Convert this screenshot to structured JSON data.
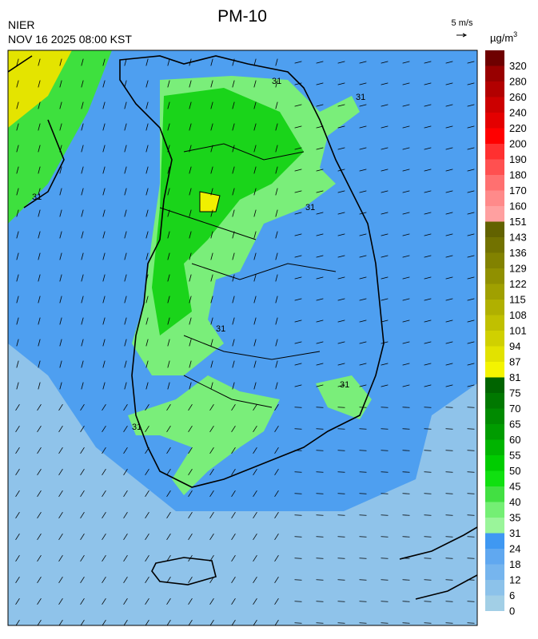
{
  "header": {
    "title": "PM-10",
    "agency": "NIER",
    "time": "NOV 16 2025 08:00 KST"
  },
  "wind_scale": {
    "label": "5 m/s"
  },
  "colorbar": {
    "unit": {
      "base": "µg/m",
      "sup": "3"
    },
    "levels": [
      0,
      6,
      12,
      18,
      24,
      31,
      35,
      40,
      45,
      50,
      55,
      60,
      65,
      70,
      75,
      81,
      87,
      94,
      101,
      108,
      115,
      122,
      129,
      136,
      143,
      151,
      160,
      170,
      180,
      190,
      200,
      220,
      240,
      260,
      280,
      320
    ],
    "colors": [
      "#a2cfe6",
      "#8cc2ea",
      "#76b5ee",
      "#60a8f0",
      "#3f98f2",
      "#9af59a",
      "#74ef74",
      "#42e042",
      "#10e010",
      "#00cc00",
      "#00b400",
      "#009c00",
      "#008a00",
      "#007800",
      "#006400",
      "#f4f400",
      "#e2e200",
      "#d0d000",
      "#c0c000",
      "#b0b000",
      "#a0a000",
      "#909000",
      "#828200",
      "#727200",
      "#626200",
      "#ffa0a0",
      "#ff8a8a",
      "#ff7070",
      "#ff5050",
      "#ff3030",
      "#ff0000",
      "#e40000",
      "#cc0000",
      "#b20000",
      "#980000",
      "#6e0000"
    ]
  },
  "map": {
    "contour_labels": [
      "31",
      "31",
      "31",
      "31",
      "31",
      "31",
      "31"
    ]
  }
}
